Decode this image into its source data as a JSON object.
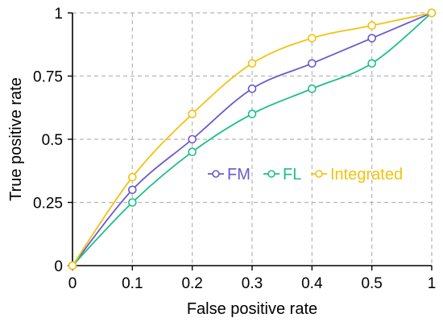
{
  "chart_data": {
    "type": "line",
    "xlabel": "False positive rate",
    "ylabel": "True positive rate",
    "xlim": [
      0,
      1
    ],
    "ylim": [
      0,
      1
    ],
    "grid": true,
    "legend_position": "center-right",
    "x_tick_labels": [
      "0",
      "0.1",
      "0.2",
      "0.3",
      "0.4",
      "0.5",
      "1"
    ],
    "y_tick_labels": [
      "0",
      "0.25",
      "0.5",
      "0.75",
      "1"
    ],
    "y_ticks": [
      0,
      0.25,
      0.5,
      0.75,
      1
    ],
    "x": [
      0,
      0.1,
      0.2,
      0.3,
      0.4,
      0.5,
      1
    ],
    "series": [
      {
        "name": "FM",
        "color": "#6a5acd",
        "values": [
          0,
          0.3,
          0.5,
          0.7,
          0.8,
          0.9,
          1.0
        ]
      },
      {
        "name": "FL",
        "color": "#1bbf8a",
        "values": [
          0,
          0.25,
          0.45,
          0.6,
          0.7,
          0.8,
          1.0
        ]
      },
      {
        "name": "Integrated",
        "color": "#f4c20d",
        "values": [
          0,
          0.35,
          0.6,
          0.8,
          0.9,
          0.95,
          1.0
        ]
      }
    ]
  }
}
